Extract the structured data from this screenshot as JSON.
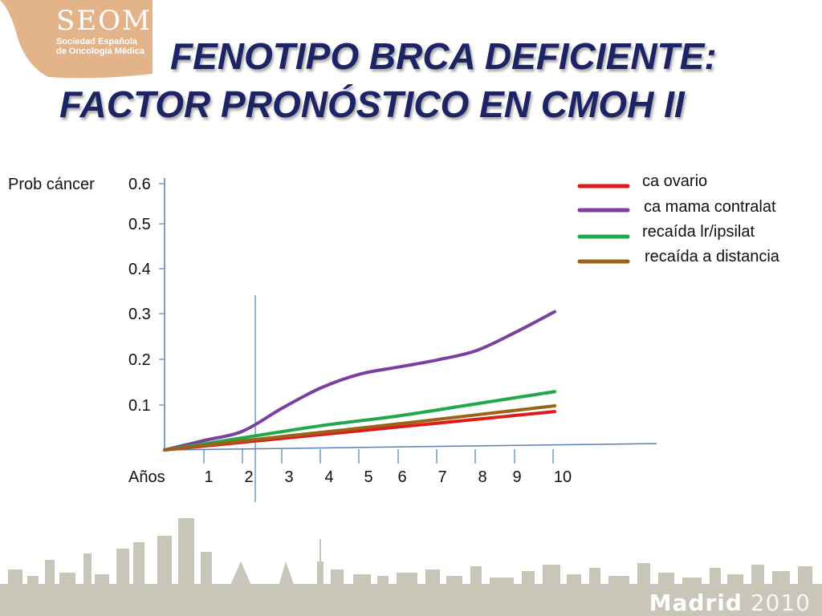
{
  "slide": {
    "logo": {
      "name": "SEOM",
      "subtitle_line1": "Sociedad Española",
      "subtitle_line2": "de Oncología Médica"
    },
    "title_line1": "FENOTIPO BRCA DEFICIENTE:",
    "title_line2": "FACTOR PRONÓSTICO EN CMOH II",
    "footer": {
      "city": "Madrid",
      "year": "2010"
    },
    "colors": {
      "title": "#1d2466",
      "logo_band": "#e3b48a",
      "skyline": "#c7c6b9",
      "axis": "#5b7fb8"
    }
  },
  "chart_data": {
    "type": "line",
    "ylabel": "Prob cáncer",
    "xlabel": "Años",
    "x_ticks": [
      "1",
      "2",
      "3",
      "4",
      "5",
      "6",
      "7",
      "8",
      "9",
      "10"
    ],
    "y_ticks": [
      "0.6",
      "0.5",
      "0.4",
      "0.3",
      "0.2",
      "0.1"
    ],
    "ylim": [
      0,
      0.6
    ],
    "xlim": [
      0,
      10
    ],
    "legend_position": "top-right",
    "series": [
      {
        "name": "ca ovario",
        "color": "#e0191b",
        "x": [
          0,
          2,
          4,
          6,
          8,
          10
        ],
        "y": [
          0,
          0.015,
          0.03,
          0.045,
          0.06,
          0.075
        ]
      },
      {
        "name": "ca mama contralat",
        "color": "#7b3fa0",
        "x": [
          0,
          1,
          2,
          3,
          4,
          5,
          6,
          7,
          8,
          9,
          10
        ],
        "y": [
          0,
          0.02,
          0.04,
          0.09,
          0.135,
          0.165,
          0.18,
          0.195,
          0.215,
          0.255,
          0.3
        ]
      },
      {
        "name": "recaída lr/ipsilat",
        "color": "#21a84a",
        "x": [
          0,
          2,
          4,
          6,
          8,
          10
        ],
        "y": [
          0,
          0.025,
          0.05,
          0.07,
          0.095,
          0.12
        ]
      },
      {
        "name": "recaída a distancia",
        "color": "#9c6217",
        "x": [
          0,
          2,
          4,
          6,
          8,
          10
        ],
        "y": [
          0,
          0.018,
          0.035,
          0.052,
          0.07,
          0.088
        ]
      }
    ]
  }
}
